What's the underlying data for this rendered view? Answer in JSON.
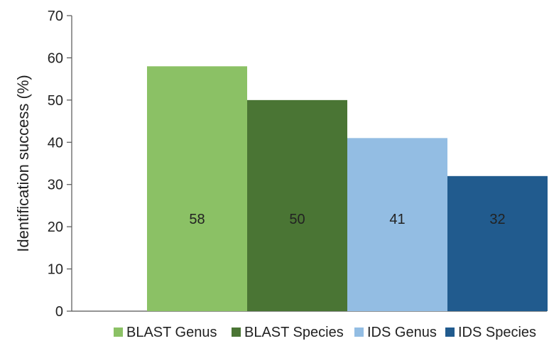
{
  "chart_data": {
    "type": "bar",
    "title": "",
    "xlabel": "",
    "ylabel": "Identification success (%)",
    "ylim": [
      0,
      70
    ],
    "yticks": [
      0,
      10,
      20,
      30,
      40,
      50,
      60,
      70
    ],
    "grid": false,
    "legend_position": "bottom",
    "series": [
      {
        "name": "BLAST Genus",
        "value": 58,
        "label": "58",
        "color": "#8bc165"
      },
      {
        "name": "BLAST Species",
        "value": 50,
        "label": "50",
        "color": "#4a7534"
      },
      {
        "name": "IDS Genus",
        "value": 41,
        "label": "41",
        "color": "#93bde3"
      },
      {
        "name": "IDS Species",
        "value": 32,
        "label": "32",
        "color": "#215b8e"
      }
    ]
  }
}
